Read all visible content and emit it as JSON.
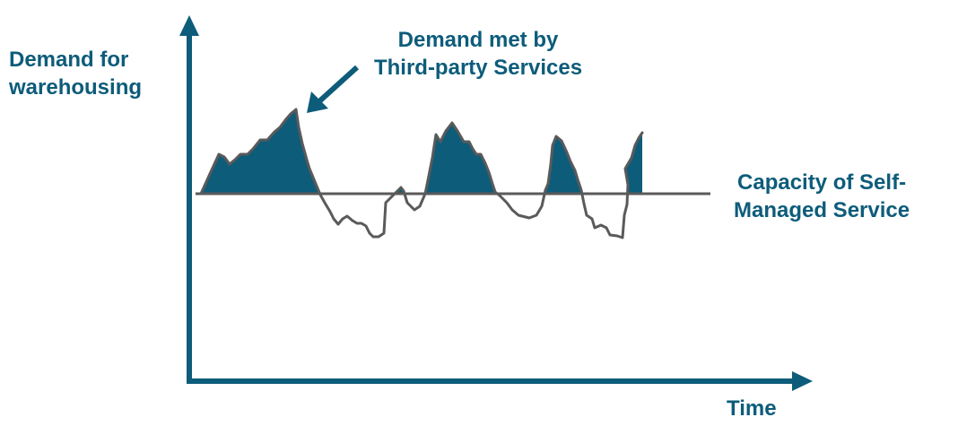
{
  "labels": {
    "y_axis_line1": "Demand for",
    "y_axis_line2": "warehousing",
    "x_axis": "Time",
    "callout_line1": "Demand met by",
    "callout_line2": "Third-party Services",
    "capacity_line1": "Capacity of Self-",
    "capacity_line2": "Managed Service"
  },
  "colors": {
    "axis": "#0d5c7a",
    "fill": "#0d5c7a",
    "demand_line": "#5a5a5a",
    "capacity_line": "#5a5a5a",
    "text": "#0d5c7a"
  },
  "icons": {
    "callout_pointer": "arrow-icon"
  }
}
